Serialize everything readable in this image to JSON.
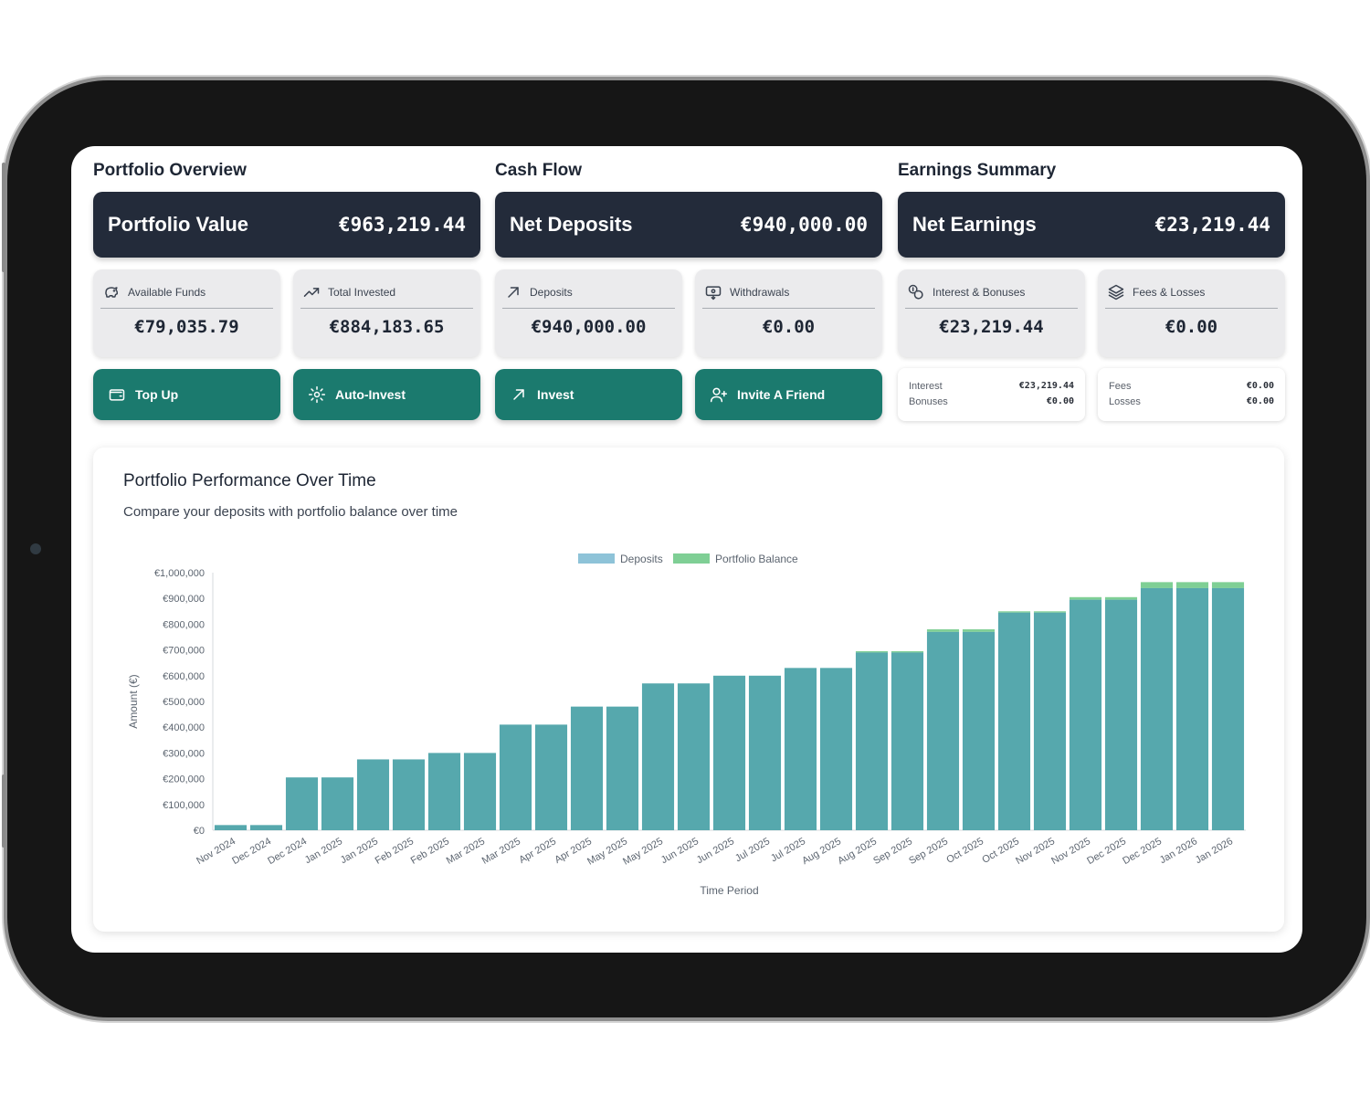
{
  "sections": {
    "portfolio_overview": "Portfolio Overview",
    "cash_flow": "Cash Flow",
    "earnings_summary": "Earnings Summary"
  },
  "heroes": {
    "portfolio_value": {
      "label": "Portfolio Value",
      "value": "€963,219.44"
    },
    "net_deposits": {
      "label": "Net Deposits",
      "value": "€940,000.00"
    },
    "net_earnings": {
      "label": "Net Earnings",
      "value": "€23,219.44"
    }
  },
  "stats": {
    "available_funds": {
      "label": "Available Funds",
      "value": "€79,035.79",
      "icon": "piggy-bank-icon"
    },
    "total_invested": {
      "label": "Total Invested",
      "value": "€884,183.65",
      "icon": "trending-up-icon"
    },
    "deposits": {
      "label": "Deposits",
      "value": "€940,000.00",
      "icon": "arrow-up-right-icon"
    },
    "withdrawals": {
      "label": "Withdrawals",
      "value": "€0.00",
      "icon": "withdraw-icon"
    },
    "interest_bonuses": {
      "label": "Interest & Bonuses",
      "value": "€23,219.44",
      "icon": "coins-icon"
    },
    "fees_losses": {
      "label": "Fees & Losses",
      "value": "€0.00",
      "icon": "layers-icon"
    }
  },
  "actions": {
    "top_up": "Top Up",
    "auto_invest": "Auto-Invest",
    "invest": "Invest",
    "invite": "Invite A Friend"
  },
  "breakdown": {
    "interest_label": "Interest",
    "interest_value": "€23,219.44",
    "bonuses_label": "Bonuses",
    "bonuses_value": "€0.00",
    "fees_label": "Fees",
    "fees_value": "€0.00",
    "losses_label": "Losses",
    "losses_value": "€0.00"
  },
  "chart_card": {
    "title": "Portfolio Performance Over Time",
    "subtitle": "Compare your deposits with portfolio balance over time"
  },
  "colors": {
    "accent": "#1b7a6e",
    "hero_bg": "#232b3a",
    "deposits": "#8ec3d8",
    "portfolio_balance": "#7fcf95",
    "bar_fill": "#56a8ad"
  },
  "chart_data": {
    "type": "bar",
    "categories": [
      "Nov 2024",
      "Dec 2024",
      "Dec 2024",
      "Jan 2025",
      "Jan 2025",
      "Feb 2025",
      "Feb 2025",
      "Mar 2025",
      "Mar 2025",
      "Apr 2025",
      "Apr 2025",
      "May 2025",
      "May 2025",
      "Jun 2025",
      "Jun 2025",
      "Jul 2025",
      "Jul 2025",
      "Aug 2025",
      "Aug 2025",
      "Sep 2025",
      "Sep 2025",
      "Oct 2025",
      "Oct 2025",
      "Nov 2025",
      "Nov 2025",
      "Dec 2025",
      "Dec 2025",
      "Jan 2026",
      "Jan 2026"
    ],
    "series": [
      {
        "name": "Deposits",
        "values": [
          20000,
          20000,
          205000,
          205000,
          275000,
          275000,
          300000,
          300000,
          410000,
          410000,
          480000,
          480000,
          570000,
          570000,
          600000,
          600000,
          630000,
          630000,
          690000,
          690000,
          770000,
          770000,
          845000,
          845000,
          895000,
          895000,
          940000,
          940000,
          940000
        ]
      },
      {
        "name": "Portfolio Balance",
        "values": [
          20000,
          20000,
          205000,
          205000,
          275000,
          275000,
          300000,
          300000,
          410000,
          410000,
          480000,
          480000,
          570000,
          570000,
          600000,
          600000,
          630000,
          630000,
          695000,
          695000,
          780000,
          780000,
          850000,
          850000,
          905000,
          905000,
          963219,
          963219,
          963219
        ]
      }
    ],
    "xlabel": "Time Period",
    "ylabel": "Amount (€)",
    "ylim": [
      0,
      1000000
    ],
    "yticks": [
      "€0",
      "€100,000",
      "€200,000",
      "€300,000",
      "€400,000",
      "€500,000",
      "€600,000",
      "€700,000",
      "€800,000",
      "€900,000",
      "€1,000,000"
    ],
    "legend_position": "top",
    "grid": false
  }
}
